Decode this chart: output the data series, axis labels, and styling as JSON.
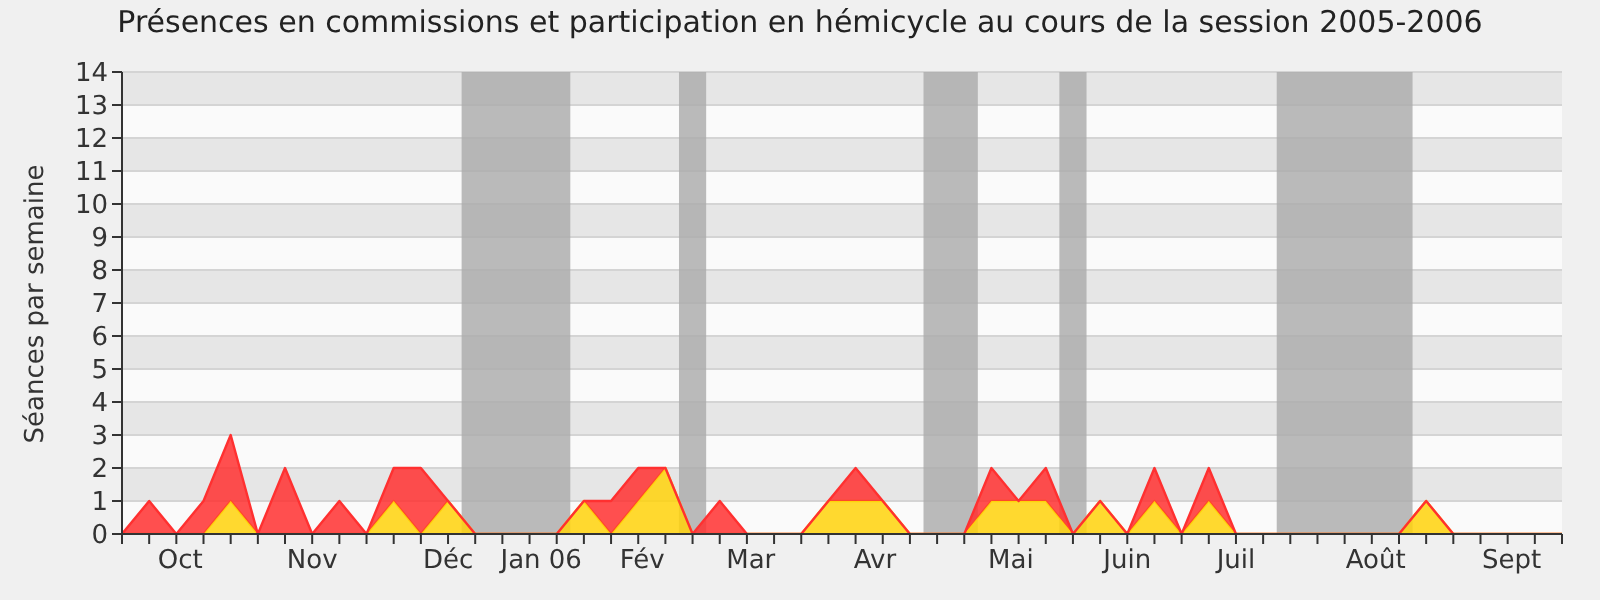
{
  "chart_data": {
    "type": "area",
    "title": "Présences en commissions et participation en hémicycle au cours de la session 2005-2006",
    "ylabel": "Séances par semaine",
    "stacked": true,
    "x": [
      "2005-09-26",
      "2005-10-03",
      "2005-10-10",
      "2005-10-17",
      "2005-10-24",
      "2005-10-31",
      "2005-11-07",
      "2005-11-14",
      "2005-11-21",
      "2005-11-28",
      "2005-12-05",
      "2005-12-12",
      "2005-12-19",
      "2005-12-26",
      "2006-01-02",
      "2006-01-09",
      "2006-01-16",
      "2006-01-23",
      "2006-01-30",
      "2006-02-06",
      "2006-02-13",
      "2006-02-20",
      "2006-02-27",
      "2006-03-06",
      "2006-03-13",
      "2006-03-20",
      "2006-03-27",
      "2006-04-03",
      "2006-04-10",
      "2006-04-17",
      "2006-04-24",
      "2006-05-01",
      "2006-05-08",
      "2006-05-15",
      "2006-05-22",
      "2006-05-29",
      "2006-06-05",
      "2006-06-12",
      "2006-06-19",
      "2006-06-26",
      "2006-07-03",
      "2006-07-10",
      "2006-07-17",
      "2006-07-24",
      "2006-07-31",
      "2006-08-07",
      "2006-08-14",
      "2006-08-21",
      "2006-08-28",
      "2006-09-04",
      "2006-09-11",
      "2006-09-18",
      "2006-09-25",
      "2006-10-02"
    ],
    "series": [
      {
        "color": "#ffd20a",
        "values": [
          0,
          0,
          0,
          0,
          1,
          0,
          0,
          0,
          0,
          0,
          1,
          0,
          1,
          0,
          0,
          0,
          0,
          1,
          0,
          1,
          2,
          0,
          0,
          0,
          0,
          0,
          1,
          1,
          1,
          0,
          0,
          0,
          1,
          1,
          1,
          0,
          1,
          0,
          1,
          0,
          1,
          0,
          0,
          0,
          0,
          0,
          0,
          0,
          1,
          0,
          0,
          0,
          0,
          0
        ]
      },
      {
        "color": "#ff3030",
        "values": [
          0,
          1,
          0,
          1,
          2,
          0,
          2,
          0,
          1,
          0,
          1,
          2,
          0,
          0,
          0,
          0,
          0,
          0,
          1,
          1,
          0,
          0,
          1,
          0,
          0,
          0,
          0,
          1,
          0,
          0,
          0,
          0,
          1,
          0,
          1,
          0,
          0,
          0,
          1,
          0,
          1,
          0,
          0,
          0,
          0,
          0,
          0,
          0,
          0,
          0,
          0,
          0,
          0,
          0
        ]
      }
    ],
    "xlim": [
      "2005-09-26",
      "2006-10-02"
    ],
    "xticks": [
      {
        "value": "2005-10-11",
        "label": "Oct"
      },
      {
        "value": "2005-11-14",
        "label": "Nov"
      },
      {
        "value": "2005-12-19",
        "label": "Déc"
      },
      {
        "value": "2006-01-12",
        "label": "Jan 06"
      },
      {
        "value": "2006-02-07",
        "label": "Fév"
      },
      {
        "value": "2006-03-07",
        "label": "Mar"
      },
      {
        "value": "2006-04-08",
        "label": "Avr"
      },
      {
        "value": "2006-05-13",
        "label": "Mai"
      },
      {
        "value": "2006-06-12",
        "label": "Juin"
      },
      {
        "value": "2006-07-10",
        "label": "Juil"
      },
      {
        "value": "2006-08-15",
        "label": "Août"
      },
      {
        "value": "2006-09-19",
        "label": "Sept"
      }
    ],
    "ylim": [
      0,
      14
    ],
    "yticks": [
      0,
      1,
      2,
      3,
      4,
      5,
      6,
      7,
      8,
      9,
      10,
      11,
      12,
      13,
      14
    ],
    "grid": "y",
    "bands": [
      {
        "axis": "x",
        "from": "2005-12-22T12:00",
        "to": "2006-01-19T12:00",
        "color": "#aaaaaa"
      },
      {
        "axis": "x",
        "from": "2006-02-16T12:00",
        "to": "2006-02-23T12:00",
        "color": "#aaaaaa"
      },
      {
        "axis": "x",
        "from": "2006-04-20T12:00",
        "to": "2006-05-04T12:00",
        "color": "#aaaaaa"
      },
      {
        "axis": "x",
        "from": "2006-05-25T12:00",
        "to": "2006-06-01T12:00",
        "color": "#aaaaaa"
      },
      {
        "axis": "x",
        "from": "2006-07-20T12:00",
        "to": "2006-08-24T12:00",
        "color": "#aaaaaa"
      }
    ]
  }
}
